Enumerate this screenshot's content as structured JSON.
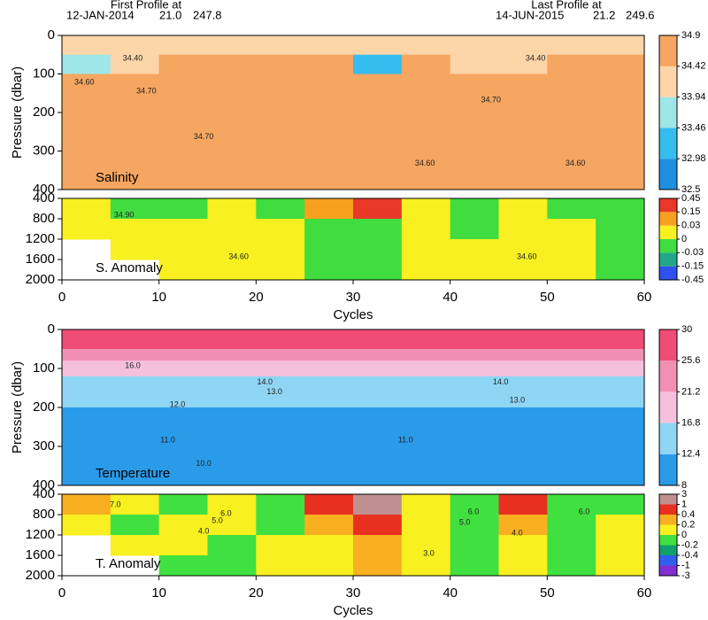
{
  "header": {
    "first_label": "First Profile at",
    "first_date": "12-JAN-2014",
    "first_lat": "21.0",
    "first_lon": "247.8",
    "last_label": "Last Profile at",
    "last_date": "14-JUN-2015",
    "last_lat": "21.2",
    "last_lon": "249.6"
  },
  "chart_data": [
    {
      "type": "heatmap",
      "label": "Salinity",
      "ylabel": "Pressure (dbar)",
      "xlim": [
        0,
        60
      ],
      "ylim": [
        0,
        400
      ],
      "yticks": [
        0,
        100,
        200,
        300,
        400
      ],
      "x_edges": [
        0,
        5,
        10,
        15,
        20,
        25,
        30,
        35,
        40,
        45,
        50,
        55,
        60
      ],
      "y_edges": [
        0,
        50,
        100,
        400
      ],
      "z": [
        [
          34.3,
          34.3,
          34.3,
          34.3,
          34.3,
          34.3,
          34.3,
          34.3,
          34.3,
          34.3,
          34.3,
          34.3
        ],
        [
          33.7,
          34.0,
          34.5,
          34.5,
          34.5,
          34.5,
          33.2,
          34.5,
          34.0,
          34.3,
          34.5,
          34.5
        ],
        [
          34.6,
          34.6,
          34.6,
          34.6,
          34.6,
          34.6,
          34.6,
          34.6,
          34.6,
          34.6,
          34.6,
          34.6
        ]
      ],
      "colorbar_ticks": [
        32.5,
        32.98,
        33.46,
        33.94,
        34.42,
        34.9
      ],
      "colors": [
        "#1f8fe0",
        "#35bdf0",
        "#9fe6e6",
        "#fcd5a8",
        "#f5a660"
      ],
      "annotations": [
        {
          "text": "34.60",
          "x": 2.3,
          "y": 122
        },
        {
          "text": "34.70",
          "x": 8.7,
          "y": 145
        },
        {
          "text": "34.70",
          "x": 14.6,
          "y": 264
        },
        {
          "text": "34.60",
          "x": 37.4,
          "y": 333
        },
        {
          "text": "34.70",
          "x": 44.2,
          "y": 168
        },
        {
          "text": "34.60",
          "x": 52.9,
          "y": 333
        },
        {
          "text": "34.40",
          "x": 7.3,
          "y": 60
        },
        {
          "text": "34.40",
          "x": 48.8,
          "y": 60
        }
      ]
    },
    {
      "type": "heatmap",
      "label": "S. Anomaly",
      "xlabel": "Cycles",
      "xlim": [
        0,
        60
      ],
      "xticks": [
        0,
        10,
        20,
        30,
        40,
        50,
        60
      ],
      "ylim": [
        400,
        2000
      ],
      "yticks": [
        400,
        800,
        1200,
        1600,
        2000
      ],
      "x_edges": [
        0,
        5,
        10,
        15,
        20,
        25,
        30,
        35,
        40,
        45,
        50,
        55,
        60
      ],
      "y_edges": [
        400,
        800,
        1200,
        1600,
        2000
      ],
      "z": [
        [
          0.02,
          -0.01,
          -0.01,
          0.01,
          -0.01,
          0.1,
          0.2,
          0.02,
          -0.01,
          0.02,
          -0.01,
          -0.02
        ],
        [
          0.01,
          0.01,
          0.02,
          0.02,
          0.01,
          -0.01,
          -0.01,
          0.01,
          -0.01,
          0.01,
          0.02,
          -0.01
        ],
        [
          null,
          0.01,
          0.02,
          0.01,
          0.01,
          -0.01,
          -0.01,
          0.02,
          0.01,
          0.02,
          0.02,
          -0.01
        ],
        [
          null,
          null,
          0.01,
          0.01,
          0.01,
          -0.01,
          -0.01,
          0.02,
          0.01,
          0.02,
          0.02,
          -0.01
        ]
      ],
      "colorbar_ticks": [
        -0.45,
        -0.15,
        -0.03,
        0,
        0.03,
        0.15,
        0.45
      ],
      "colors": [
        "#3050f0",
        "#20a888",
        "#40dc40",
        "#f8f020",
        "#f8a020",
        "#e83828"
      ],
      "annotations": [
        {
          "text": "34.90",
          "x": 6.4,
          "y": 730
        },
        {
          "text": "34.60",
          "x": 18.2,
          "y": 1548
        },
        {
          "text": "34.60",
          "x": 47.9,
          "y": 1548
        }
      ]
    },
    {
      "type": "heatmap",
      "label": "Temperature",
      "ylabel": "Pressure (dbar)",
      "xlim": [
        0,
        60
      ],
      "ylim": [
        0,
        400
      ],
      "yticks": [
        0,
        100,
        200,
        300,
        400
      ],
      "x_edges": [
        0,
        5,
        10,
        15,
        20,
        25,
        30,
        35,
        40,
        45,
        50,
        55,
        60
      ],
      "y_edges": [
        0,
        50,
        80,
        120,
        200,
        300,
        400
      ],
      "z": [
        [
          27,
          27,
          27,
          27,
          27,
          27,
          27,
          27,
          27,
          27,
          27,
          27
        ],
        [
          22,
          22,
          22,
          22,
          22,
          22,
          22,
          22,
          22,
          22,
          22,
          22
        ],
        [
          17,
          17,
          17,
          17,
          17,
          17,
          17,
          17,
          17,
          17,
          17,
          17
        ],
        [
          14,
          14,
          14,
          14,
          14,
          14,
          14,
          14,
          14,
          14,
          14,
          14
        ],
        [
          11,
          11,
          11,
          11,
          11,
          11,
          11,
          11,
          11,
          11,
          11,
          11
        ],
        [
          9,
          9,
          9,
          9,
          9,
          9,
          9,
          9,
          9,
          9,
          9,
          9
        ]
      ],
      "colorbar_ticks": [
        8,
        12.4,
        16.8,
        21.2,
        25.6,
        30
      ],
      "colors": [
        "#2a9be8",
        "#8ed6f4",
        "#f4c0dc",
        "#f290b4",
        "#f04c78"
      ],
      "annotations": [
        {
          "text": "16.0",
          "x": 7.3,
          "y": 93
        },
        {
          "text": "14.0",
          "x": 20.9,
          "y": 136
        },
        {
          "text": "13.0",
          "x": 21.9,
          "y": 161
        },
        {
          "text": "12.0",
          "x": 11.9,
          "y": 193
        },
        {
          "text": "11.0",
          "x": 10.9,
          "y": 284
        },
        {
          "text": "11.0",
          "x": 35.4,
          "y": 284
        },
        {
          "text": "10.0",
          "x": 14.6,
          "y": 345
        },
        {
          "text": "14.0",
          "x": 45.2,
          "y": 136
        },
        {
          "text": "13.0",
          "x": 46.9,
          "y": 182
        }
      ]
    },
    {
      "type": "heatmap",
      "label": "T. Anomaly",
      "xlabel": "Cycles",
      "xlim": [
        0,
        60
      ],
      "xticks": [
        0,
        10,
        20,
        30,
        40,
        50,
        60
      ],
      "ylim": [
        400,
        2000
      ],
      "yticks": [
        400,
        800,
        1200,
        1600,
        2000
      ],
      "x_edges": [
        0,
        5,
        10,
        15,
        20,
        25,
        30,
        35,
        40,
        45,
        50,
        55,
        60
      ],
      "y_edges": [
        400,
        800,
        1200,
        1600,
        2000
      ],
      "z": [
        [
          0.3,
          0.1,
          -0.1,
          0.1,
          -0.1,
          0.5,
          1.2,
          0.1,
          -0.1,
          0.8,
          -0.1,
          -0.1
        ],
        [
          0.1,
          -0.1,
          0.1,
          0.1,
          -0.1,
          0.3,
          0.5,
          0.1,
          -0.1,
          0.3,
          -0.1,
          0.1
        ],
        [
          null,
          0.1,
          0.1,
          -0.1,
          0.1,
          0.1,
          0.3,
          0.1,
          -0.1,
          0.1,
          -0.1,
          0.1
        ],
        [
          null,
          null,
          -0.1,
          -0.1,
          0.1,
          0.1,
          0.2,
          0.1,
          -0.1,
          0.1,
          -0.1,
          0.1
        ]
      ],
      "colorbar_ticks": [
        -3,
        -1,
        -0.4,
        -0.2,
        0,
        0.2,
        0.4,
        1,
        3
      ],
      "colors": [
        "#8030d0",
        "#3060f0",
        "#10a070",
        "#40e040",
        "#f8f020",
        "#f8b020",
        "#e83020",
        "#c09090"
      ],
      "annotations": [
        {
          "text": "7.0",
          "x": 5.5,
          "y": 609
        },
        {
          "text": "6.0",
          "x": 16.9,
          "y": 783
        },
        {
          "text": "5.0",
          "x": 16,
          "y": 922
        },
        {
          "text": "4.0",
          "x": 14.6,
          "y": 1130
        },
        {
          "text": "3.0",
          "x": 37.8,
          "y": 1565
        },
        {
          "text": "6.0",
          "x": 42.4,
          "y": 748
        },
        {
          "text": "5.0",
          "x": 41.5,
          "y": 957
        },
        {
          "text": "4.0",
          "x": 46.9,
          "y": 1165
        },
        {
          "text": "6.0",
          "x": 53.8,
          "y": 748
        }
      ]
    }
  ]
}
